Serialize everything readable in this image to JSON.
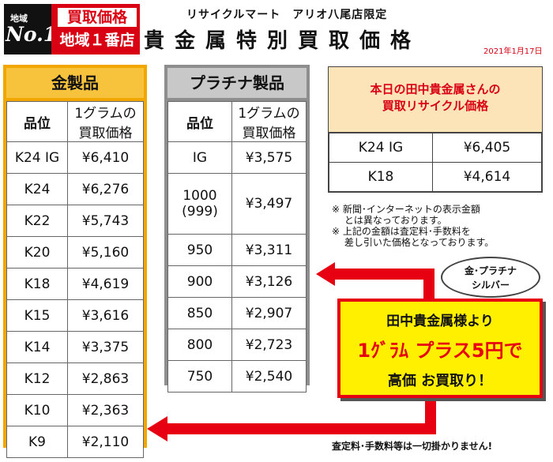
{
  "badge": {
    "area": "地域",
    "no1": "No.1",
    "line1": "買取価格",
    "line2": "地域１番店"
  },
  "header": {
    "store": "リサイクルマート　アリオ八尾店限定",
    "title": "貴金属特別買取価格",
    "date": "2021年1月17日"
  },
  "gold": {
    "heading": "金製品",
    "col_grade": "品位",
    "col_price": "1グラムの買取価格",
    "rows": [
      {
        "grade": "K24 IG",
        "price": "¥6,410"
      },
      {
        "grade": "K24",
        "price": "¥6,276"
      },
      {
        "grade": "K22",
        "price": "¥5,743"
      },
      {
        "grade": "K20",
        "price": "¥5,160"
      },
      {
        "grade": "K18",
        "price": "¥4,619"
      },
      {
        "grade": "K15",
        "price": "¥3,616"
      },
      {
        "grade": "K14",
        "price": "¥3,375"
      },
      {
        "grade": "K12",
        "price": "¥2,863"
      },
      {
        "grade": "K10",
        "price": "¥2,363"
      },
      {
        "grade": "K9",
        "price": "¥2,110"
      }
    ]
  },
  "platinum": {
    "heading": "プラチナ製品",
    "col_grade": "品位",
    "col_price": "1グラムの買取価格",
    "rows": [
      {
        "grade": "IG",
        "price": "¥3,575"
      },
      {
        "grade": "1000\n(999)",
        "price": "¥3,497"
      },
      {
        "grade": "950",
        "price": "¥3,311"
      },
      {
        "grade": "900",
        "price": "¥3,126"
      },
      {
        "grade": "850",
        "price": "¥2,907"
      },
      {
        "grade": "800",
        "price": "¥2,723"
      },
      {
        "grade": "750",
        "price": "¥2,540"
      }
    ]
  },
  "today": {
    "line1": "本日の田中貴金属さんの",
    "line2": "買取リサイクル価格",
    "rows": [
      {
        "grade": "K24 IG",
        "price": "¥6,405"
      },
      {
        "grade": "K18",
        "price": "¥4,614"
      }
    ]
  },
  "notes": [
    "※ 新聞･インターネットの表示金額",
    "　 とは異なっております。",
    "※ 上記の金額は査定料･手数料を",
    "　 差し引いた価格となっております。"
  ],
  "bubble": {
    "line1": "金･プラチナ",
    "line2": "シルバー"
  },
  "callout": {
    "line1": "田中貴金属様より",
    "line2": "1ｸﾞﾗﾑ プラス5円で",
    "line3": "高価 お買取り！"
  },
  "footer": "査定料･手数料等は一切掛かりません!",
  "colors": {
    "accent_red": "#e60012",
    "gold": "#f7c23c",
    "platinum": "#c8c8c8",
    "callout": "#fff000"
  }
}
